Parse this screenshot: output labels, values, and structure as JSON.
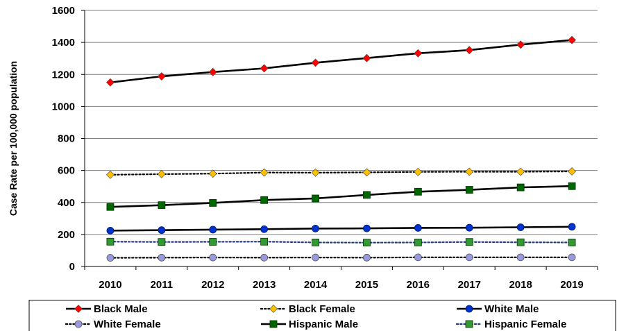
{
  "chart_data": {
    "type": "line",
    "title": "",
    "xlabel": "",
    "ylabel": "Case Rate per 100,000 population",
    "ylim": [
      0,
      1600
    ],
    "yticks": [
      0,
      200,
      400,
      600,
      800,
      1000,
      1200,
      1400,
      1600
    ],
    "grid": "horizontal",
    "legend_position": "bottom",
    "x": [
      "2010",
      "2011",
      "2012",
      "2013",
      "2014",
      "2015",
      "2016",
      "2017",
      "2018",
      "2019"
    ],
    "series": [
      {
        "name": "Black Male",
        "values": [
          1150,
          1188,
          1215,
          1238,
          1273,
          1302,
          1332,
          1352,
          1386,
          1415
        ],
        "color": "#000000",
        "marker": "diamond",
        "marker_color": "#ff0000",
        "line_style": "solid"
      },
      {
        "name": "Black Female",
        "values": [
          573,
          577,
          580,
          587,
          586,
          588,
          591,
          592,
          592,
          594
        ],
        "color": "#000000",
        "marker": "diamond",
        "marker_color": "#ffc000",
        "line_style": "dotted"
      },
      {
        "name": "White Male",
        "values": [
          224,
          227,
          230,
          233,
          237,
          238,
          241,
          242,
          245,
          248
        ],
        "color": "#000000",
        "marker": "circle",
        "marker_color": "#0033cc",
        "line_style": "solid"
      },
      {
        "name": "White Female",
        "values": [
          54,
          55,
          56,
          55,
          56,
          55,
          57,
          57,
          57,
          57
        ],
        "color": "#000000",
        "marker": "circle",
        "marker_color": "#9999dd",
        "line_style": "dotted"
      },
      {
        "name": "Hispanic Male",
        "values": [
          372,
          383,
          397,
          415,
          425,
          447,
          467,
          479,
          494,
          502
        ],
        "color": "#000000",
        "marker": "square",
        "marker_color": "#006600",
        "line_style": "solid"
      },
      {
        "name": "Hispanic Female",
        "values": [
          155,
          153,
          154,
          155,
          150,
          149,
          150,
          153,
          151,
          150
        ],
        "color": "#1f3b7a",
        "marker": "square",
        "marker_color": "#339933",
        "line_style": "dotted"
      }
    ]
  }
}
